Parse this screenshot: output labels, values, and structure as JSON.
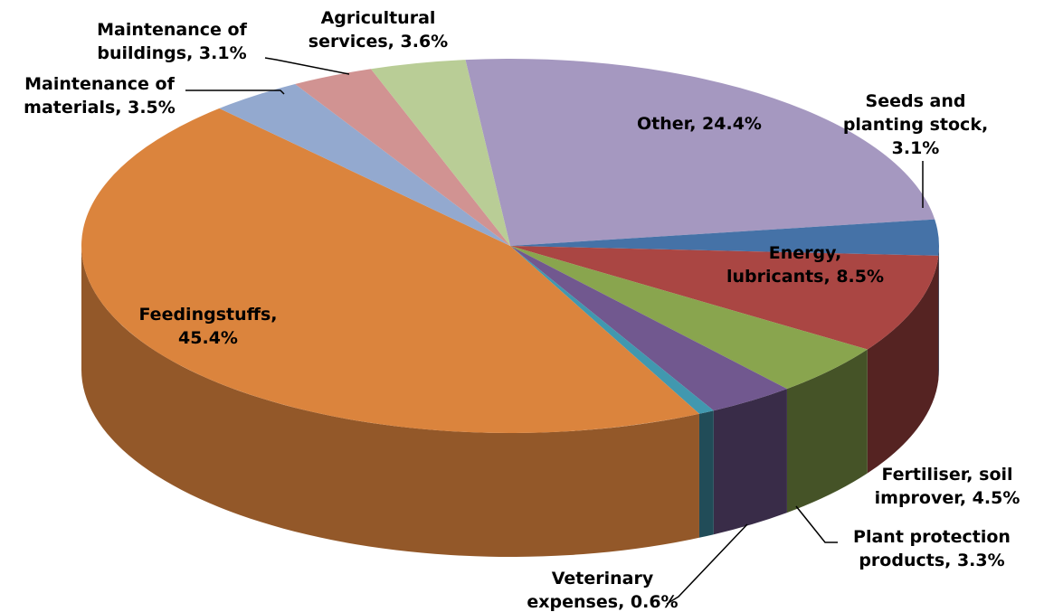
{
  "chart_data": {
    "type": "pie",
    "three_d": true,
    "labels": [
      "Other, 24.4%",
      "Seeds and planting stock, 3.1%",
      "Energy, lubricants, 8.5%",
      "Fertiliser, soil improver, 4.5%",
      "Plant protection products, 3.3%",
      "Veterinary expenses, 0.6%",
      "Feedingstuffs, 45.4%",
      "Maintenance of materials, 3.5%",
      "Maintenance of buildings, 3.1%",
      "Agricultural services, 3.6%"
    ],
    "values": [
      24.4,
      3.1,
      8.5,
      4.5,
      3.3,
      0.6,
      45.4,
      3.5,
      3.1,
      3.6
    ],
    "colors": [
      "#a598c0",
      "#4572a7",
      "#aa4643",
      "#89a54e",
      "#71588f",
      "#4198af",
      "#db843d",
      "#93a9cf",
      "#d19392",
      "#b9cd96"
    ]
  }
}
